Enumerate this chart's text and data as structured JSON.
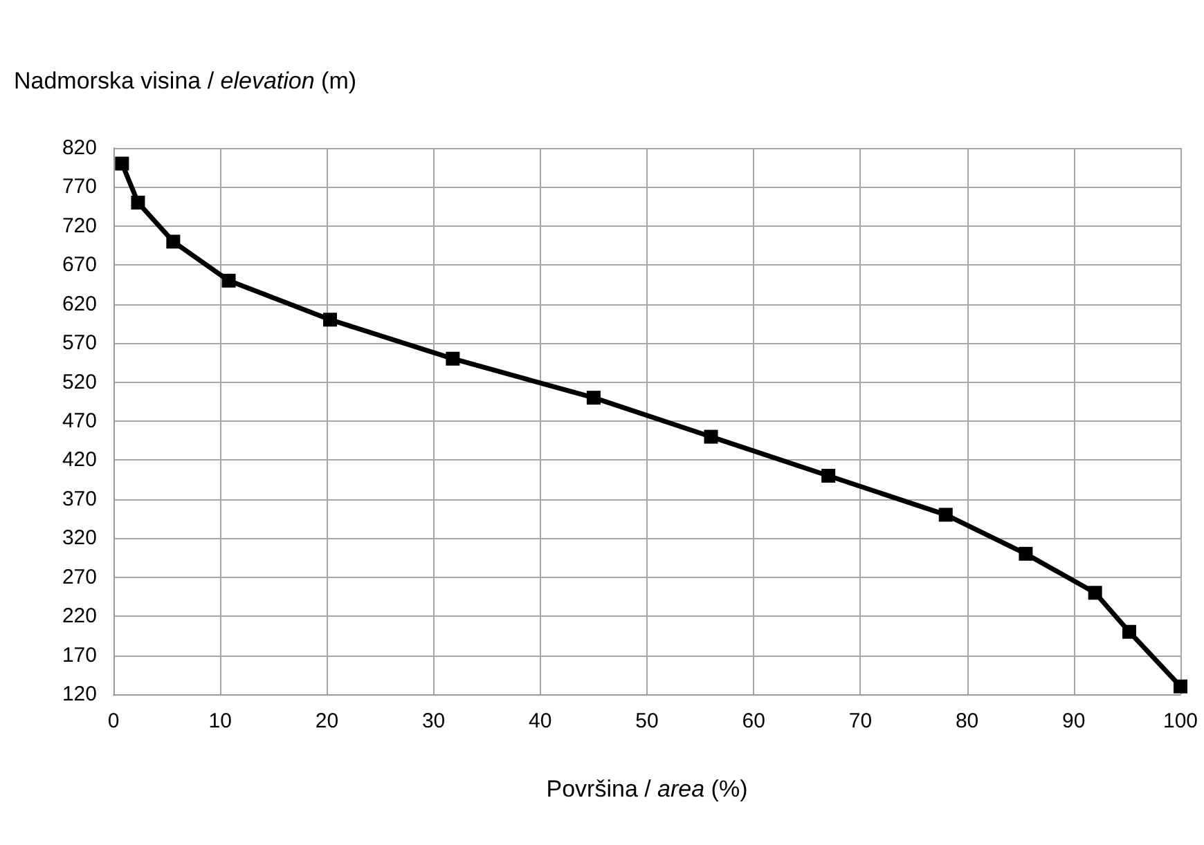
{
  "chart_data": {
    "type": "line",
    "xlabel": "Površina / area (%)",
    "ylabel": "Nadmorska visina / elevation (m)",
    "x": [
      0.8,
      2.3,
      5.6,
      10.8,
      20.3,
      31.8,
      45,
      56,
      67,
      78,
      85.5,
      92,
      95.2,
      100
    ],
    "series": [
      {
        "color": "#000000",
        "values": [
          800,
          750,
          700,
          650,
          600,
          550,
          500,
          450,
          400,
          350,
          300,
          250,
          200,
          130
        ]
      }
    ],
    "xlim": [
      0,
      100
    ],
    "xticks": [
      0,
      10,
      20,
      30,
      40,
      50,
      60,
      70,
      80,
      90,
      100
    ],
    "ylim": [
      120,
      820
    ],
    "yticks": [
      120,
      170,
      220,
      270,
      320,
      370,
      420,
      470,
      520,
      570,
      620,
      670,
      720,
      770,
      820
    ],
    "grid": true,
    "marker": "square",
    "line_style": "solid"
  }
}
